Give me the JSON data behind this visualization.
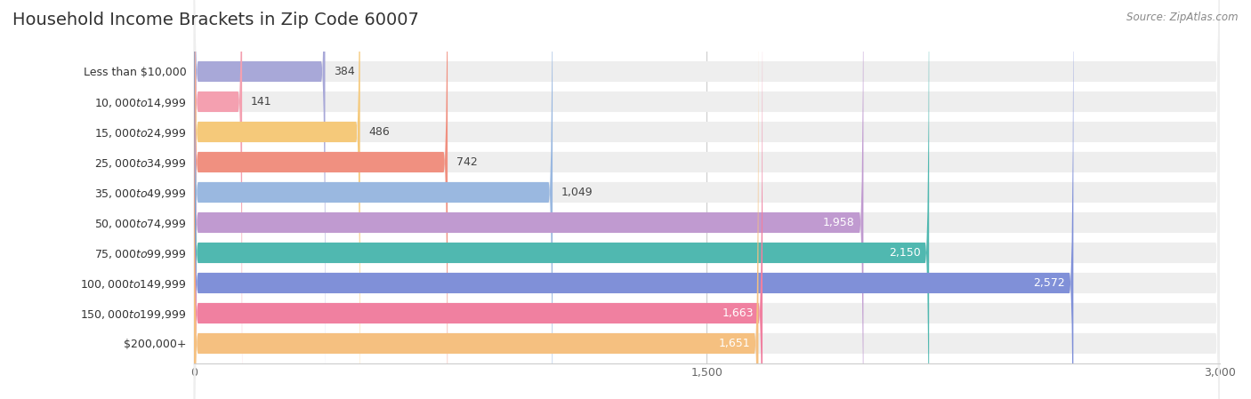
{
  "title": "Household Income Brackets in Zip Code 60007",
  "source": "Source: ZipAtlas.com",
  "categories": [
    "Less than $10,000",
    "$10,000 to $14,999",
    "$15,000 to $24,999",
    "$25,000 to $34,999",
    "$35,000 to $49,999",
    "$50,000 to $74,999",
    "$75,000 to $99,999",
    "$100,000 to $149,999",
    "$150,000 to $199,999",
    "$200,000+"
  ],
  "values": [
    384,
    141,
    486,
    742,
    1049,
    1958,
    2150,
    2572,
    1663,
    1651
  ],
  "bar_colors": [
    "#a8a8d8",
    "#f4a0b0",
    "#f5c97a",
    "#f09080",
    "#9ab8e0",
    "#c09ad0",
    "#50b8b0",
    "#8090d8",
    "#f080a0",
    "#f5c080"
  ],
  "xlim": [
    0,
    3000
  ],
  "xticks": [
    0,
    1500,
    3000
  ],
  "xtick_labels": [
    "0",
    "1,500",
    "3,000"
  ],
  "background_color": "#ffffff",
  "bar_background_color": "#eeeeee",
  "title_fontsize": 14,
  "label_fontsize": 9,
  "value_fontsize": 9,
  "bar_height": 0.68,
  "value_threshold": 1200
}
